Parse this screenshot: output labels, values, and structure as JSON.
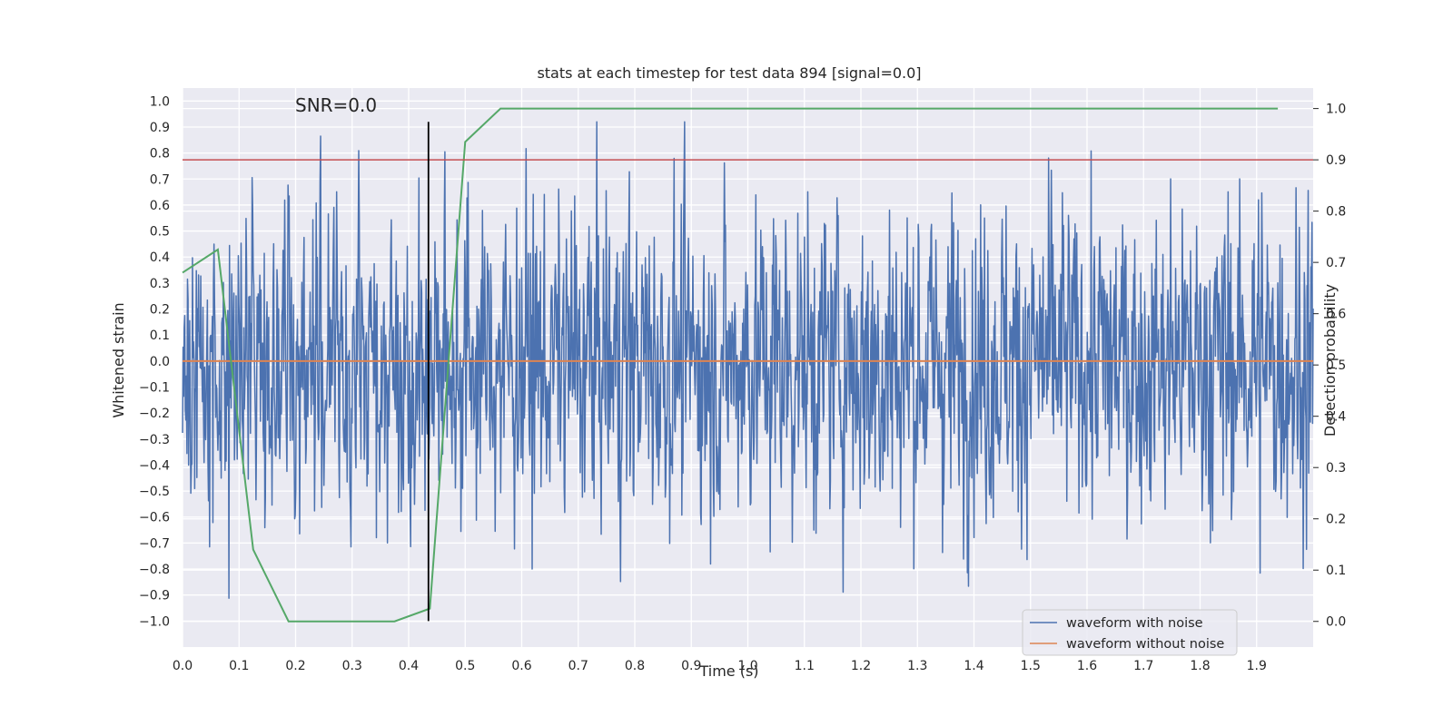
{
  "chart_data": {
    "type": "line",
    "title": "stats at each timestep for test data 894 [signal=0.0]",
    "xlabel": "Time (s)",
    "ylabel_left": "Whitened strain",
    "ylabel_right": "Detection probability",
    "xlim": [
      0.0,
      2.0
    ],
    "ylim_left": [
      -1.1,
      1.05
    ],
    "ylim_right": [
      -0.05,
      1.04
    ],
    "x_ticks": [
      "0.0",
      "0.1",
      "0.2",
      "0.3",
      "0.4",
      "0.5",
      "0.6",
      "0.7",
      "0.8",
      "0.9",
      "1.0",
      "1.1",
      "1.2",
      "1.3",
      "1.4",
      "1.5",
      "1.6",
      "1.7",
      "1.8",
      "1.9"
    ],
    "y_ticks_left": [
      "1.0",
      "0.9",
      "0.8",
      "0.7",
      "0.6",
      "0.5",
      "0.4",
      "0.3",
      "0.2",
      "0.1",
      "0.0",
      "-0.1",
      "-0.2",
      "-0.3",
      "-0.4",
      "-0.5",
      "-0.6",
      "-0.7",
      "-0.8",
      "-0.9",
      "-1.0"
    ],
    "y_ticks_right": [
      "1.0",
      "0.9",
      "0.8",
      "0.7",
      "0.6",
      "0.5",
      "0.4",
      "0.3",
      "0.2",
      "0.1",
      "0.0"
    ],
    "annotation": "SNR=0.0",
    "grid": true,
    "legend_position": "lower-right",
    "series": [
      {
        "name": "waveform with noise",
        "axis": "left",
        "color": "#4c72b0",
        "kind": "noise",
        "x_range": [
          0.0,
          2.0
        ],
        "n_points": 2048,
        "approx_std": 0.3,
        "approx_range": [
          -0.98,
          0.92
        ]
      },
      {
        "name": "waveform without noise",
        "axis": "left",
        "color": "#dd8452",
        "x": [
          0.0,
          2.0
        ],
        "values": [
          0.0,
          0.0
        ]
      },
      {
        "name": "detection probability",
        "axis": "right",
        "color": "#55a868",
        "x": [
          0.0,
          0.0625,
          0.125,
          0.1875,
          0.25,
          0.3125,
          0.375,
          0.4375,
          0.5,
          0.5625,
          0.625,
          0.75,
          1.0,
          1.25,
          1.5,
          1.75,
          1.9375
        ],
        "values": [
          0.68,
          0.725,
          0.14,
          0.0,
          0.0,
          0.0,
          0.0,
          0.025,
          0.935,
          1.0,
          1.0,
          1.0,
          1.0,
          1.0,
          1.0,
          1.0,
          1.0
        ]
      }
    ],
    "threshold_line": {
      "axis": "right",
      "value": 0.9,
      "color": "#c44e52"
    },
    "marker_line": {
      "axis": "left",
      "x": 0.435,
      "y_range": [
        -1.0,
        0.92
      ],
      "color": "#000000"
    }
  }
}
